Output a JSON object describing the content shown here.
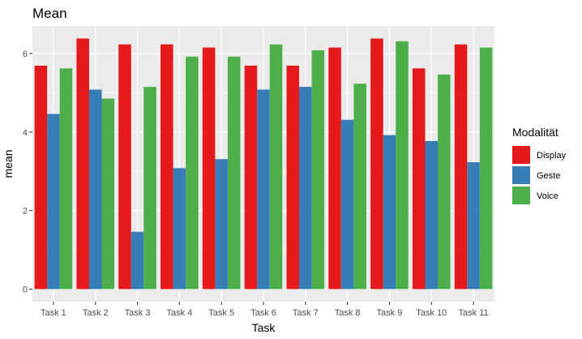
{
  "chart_data": {
    "type": "bar",
    "title": "Mean",
    "xlabel": "Task",
    "ylabel": "mean",
    "categories": [
      "Task 1",
      "Task 2",
      "Task 3",
      "Task 4",
      "Task 5",
      "Task 6",
      "Task 7",
      "Task 8",
      "Task 9",
      "Task 10",
      "Task 11"
    ],
    "series": [
      {
        "name": "Display",
        "color": "#e41a1c",
        "values": [
          5.69,
          6.38,
          6.23,
          6.23,
          6.15,
          5.69,
          5.69,
          6.15,
          6.38,
          5.62,
          6.23
        ]
      },
      {
        "name": "Geste",
        "color": "#377eb8",
        "values": [
          4.46,
          5.08,
          1.46,
          3.08,
          3.31,
          5.08,
          5.15,
          4.31,
          3.92,
          3.77,
          3.23
        ]
      },
      {
        "name": "Voice",
        "color": "#4daf4a",
        "values": [
          5.62,
          4.85,
          5.15,
          5.92,
          5.92,
          6.23,
          6.08,
          5.23,
          6.31,
          5.46,
          6.15
        ]
      }
    ],
    "yticks": [
      0,
      2,
      4,
      6
    ],
    "ylim": [
      -0.32,
      6.7
    ],
    "legend": {
      "title": "Modalität",
      "position": "right"
    },
    "grid": true,
    "panel_background": "#ebebeb"
  }
}
